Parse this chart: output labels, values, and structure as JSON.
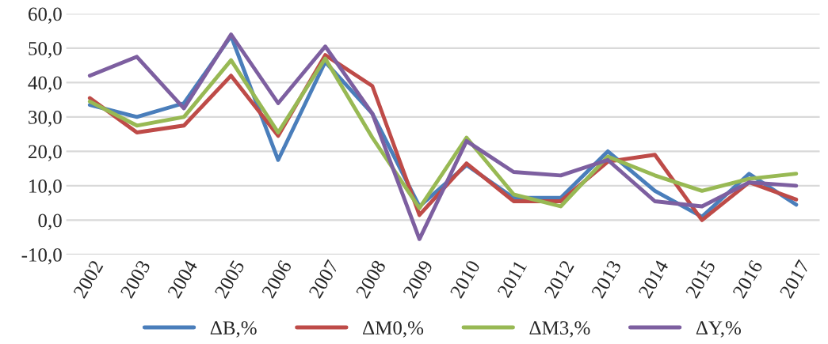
{
  "chart_data": {
    "type": "line",
    "categories": [
      "2002",
      "2003",
      "2004",
      "2005",
      "2006",
      "2007",
      "2008",
      "2009",
      "2010",
      "2011",
      "2012",
      "2013",
      "2014",
      "2015",
      "2016",
      "2017"
    ],
    "series": [
      {
        "name": "ΔB,%",
        "color": "#4a7ebb",
        "values": [
          33.5,
          30,
          34,
          53.5,
          17.5,
          46,
          31,
          4,
          16,
          6.5,
          6.5,
          20,
          8.5,
          1,
          13.5,
          4.5
        ]
      },
      {
        "name": "ΔM0,%",
        "color": "#be4b48",
        "values": [
          35.5,
          25.5,
          27.5,
          42,
          24.5,
          48,
          39,
          1.5,
          16.5,
          5.5,
          5.5,
          17,
          19,
          0,
          11,
          6
        ]
      },
      {
        "name": "ΔM3,%",
        "color": "#98b954",
        "values": [
          34.5,
          27.5,
          30,
          46.5,
          25.5,
          47,
          24,
          3.5,
          24,
          7.5,
          4,
          18.5,
          13,
          8.5,
          12,
          13.5
        ]
      },
      {
        "name": "ΔY,%",
        "color": "#7d5fa0",
        "values": [
          42,
          47.5,
          32.5,
          54,
          34,
          50.5,
          31,
          -5.5,
          23,
          14,
          13,
          17.5,
          5.5,
          4,
          11,
          10
        ]
      }
    ],
    "ylim": [
      -10,
      60
    ],
    "yticks": [
      {
        "value": -10,
        "label": "-10,0"
      },
      {
        "value": 0,
        "label": "0,0"
      },
      {
        "value": 10,
        "label": "10,0"
      },
      {
        "value": 20,
        "label": "20,0"
      },
      {
        "value": 30,
        "label": "30,0"
      },
      {
        "value": 40,
        "label": "40,0"
      },
      {
        "value": 50,
        "label": "50,0"
      },
      {
        "value": 60,
        "label": "60,0"
      }
    ],
    "grid": "y",
    "legend": "bottom",
    "marker": "none",
    "line_style": "solid"
  }
}
